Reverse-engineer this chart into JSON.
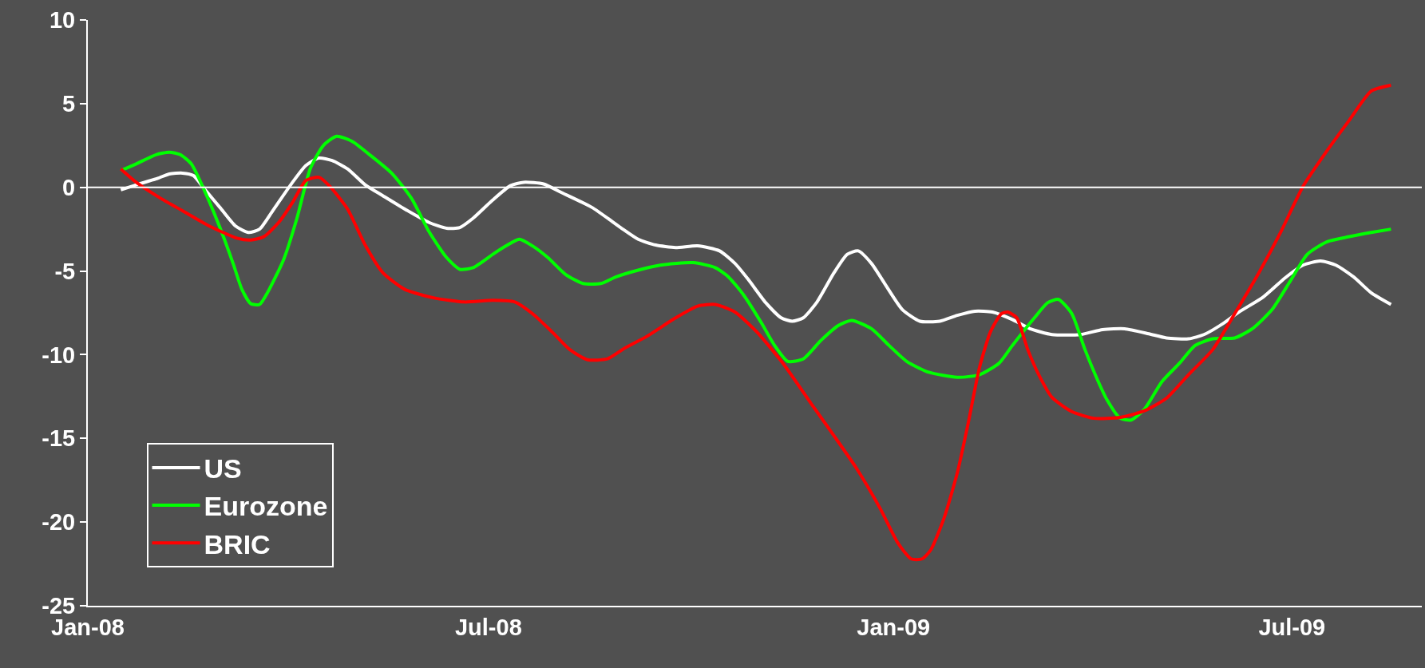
{
  "chart_data": {
    "type": "line",
    "xlim": [
      "2008-01-01",
      "2009-08-29"
    ],
    "xticks": [
      {
        "value": "2008-01-01",
        "label": "Jan-08"
      },
      {
        "value": "2008-07-01",
        "label": "Jul-08"
      },
      {
        "value": "2009-01-01",
        "label": "Jan-09"
      },
      {
        "value": "2009-07-01",
        "label": "Jul-09"
      }
    ],
    "ylim": [
      -25,
      10
    ],
    "yticks": [
      -25,
      -20,
      -15,
      -10,
      -5,
      0,
      5,
      10
    ],
    "grid": false,
    "legend": "bottom left",
    "marker": "none",
    "line_style": "solid",
    "ref_lines": [
      {
        "axis": "y",
        "value": 0,
        "color": "#ffffff"
      }
    ],
    "series": [
      {
        "name": "US",
        "color": "#ffffff",
        "x": [
          "2008-01-16",
          "2008-01-23",
          "2008-02-01",
          "2008-02-07",
          "2008-02-13",
          "2008-02-18",
          "2008-02-23",
          "2008-03-01",
          "2008-03-08",
          "2008-03-14",
          "2008-03-19",
          "2008-03-25",
          "2008-04-03",
          "2008-04-09",
          "2008-04-15",
          "2008-04-21",
          "2008-04-28",
          "2008-05-06",
          "2008-05-14",
          "2008-05-24",
          "2008-06-04",
          "2008-06-12",
          "2008-06-18",
          "2008-06-24",
          "2008-07-03",
          "2008-07-11",
          "2008-07-17",
          "2008-07-26",
          "2008-08-03",
          "2008-08-17",
          "2008-08-30",
          "2008-09-07",
          "2008-09-15",
          "2008-09-24",
          "2008-10-04",
          "2008-10-14",
          "2008-10-21",
          "2008-10-27",
          "2008-11-04",
          "2008-11-11",
          "2008-11-16",
          "2008-11-21",
          "2008-11-27",
          "2008-12-05",
          "2008-12-11",
          "2008-12-16",
          "2008-12-22",
          "2008-12-28",
          "2009-01-05",
          "2009-01-13",
          "2009-01-22",
          "2009-01-30",
          "2009-02-07",
          "2009-02-15",
          "2009-02-24",
          "2009-03-04",
          "2009-03-14",
          "2009-03-27",
          "2009-04-06",
          "2009-04-16",
          "2009-04-27",
          "2009-05-05",
          "2009-05-15",
          "2009-05-22",
          "2009-05-30",
          "2009-06-07",
          "2009-06-18",
          "2009-06-28",
          "2009-07-06",
          "2009-07-14",
          "2009-07-21",
          "2009-07-29",
          "2009-08-06",
          "2009-08-15"
        ],
        "values": [
          -0.15,
          0.15,
          0.5,
          0.8,
          0.85,
          0.7,
          -0.1,
          -1.2,
          -2.3,
          -2.7,
          -2.5,
          -1.4,
          0.3,
          1.3,
          1.75,
          1.6,
          1.1,
          0.15,
          -0.5,
          -1.3,
          -2.1,
          -2.45,
          -2.4,
          -1.85,
          -0.75,
          0.1,
          0.3,
          0.2,
          -0.3,
          -1.2,
          -2.4,
          -3.1,
          -3.45,
          -3.6,
          -3.5,
          -3.8,
          -4.55,
          -5.5,
          -6.9,
          -7.8,
          -8.0,
          -7.8,
          -6.9,
          -5.1,
          -4.0,
          -3.8,
          -4.55,
          -5.75,
          -7.3,
          -8.0,
          -8.0,
          -7.65,
          -7.4,
          -7.45,
          -7.9,
          -8.45,
          -8.8,
          -8.8,
          -8.5,
          -8.45,
          -8.75,
          -9.0,
          -9.05,
          -8.8,
          -8.2,
          -7.45,
          -6.55,
          -5.4,
          -4.65,
          -4.4,
          -4.65,
          -5.35,
          -6.3,
          -7.0
        ]
      },
      {
        "name": "Eurozone",
        "color": "#00ff00",
        "x": [
          "2008-01-16",
          "2008-01-23",
          "2008-02-01",
          "2008-02-07",
          "2008-02-12",
          "2008-02-17",
          "2008-02-23",
          "2008-03-01",
          "2008-03-07",
          "2008-03-11",
          "2008-03-15",
          "2008-03-19",
          "2008-03-23",
          "2008-03-30",
          "2008-04-05",
          "2008-04-11",
          "2008-04-17",
          "2008-04-23",
          "2008-04-30",
          "2008-05-08",
          "2008-05-18",
          "2008-05-27",
          "2008-06-04",
          "2008-06-12",
          "2008-06-18",
          "2008-06-24",
          "2008-07-03",
          "2008-07-09",
          "2008-07-15",
          "2008-07-21",
          "2008-07-28",
          "2008-08-05",
          "2008-08-13",
          "2008-08-21",
          "2008-08-28",
          "2008-09-07",
          "2008-09-17",
          "2008-10-02",
          "2008-10-12",
          "2008-10-18",
          "2008-10-25",
          "2008-11-02",
          "2008-11-08",
          "2008-11-14",
          "2008-11-21",
          "2008-11-29",
          "2008-12-07",
          "2008-12-13",
          "2008-12-22",
          "2008-12-30",
          "2009-01-07",
          "2009-01-17",
          "2009-01-30",
          "2009-02-09",
          "2009-02-18",
          "2009-02-24",
          "2009-03-06",
          "2009-03-12",
          "2009-03-17",
          "2009-03-23",
          "2009-03-29",
          "2009-04-04",
          "2009-04-08",
          "2009-04-14",
          "2009-04-19",
          "2009-04-25",
          "2009-05-03",
          "2009-05-11",
          "2009-05-18",
          "2009-05-26",
          "2009-06-05",
          "2009-06-13",
          "2009-06-22",
          "2009-06-30",
          "2009-07-08",
          "2009-07-17",
          "2009-07-27",
          "2009-08-06",
          "2009-08-15"
        ],
        "values": [
          1.0,
          1.4,
          1.95,
          2.1,
          1.95,
          1.4,
          -0.2,
          -2.4,
          -4.55,
          -6.1,
          -6.95,
          -7.0,
          -6.2,
          -4.3,
          -1.85,
          1.1,
          2.5,
          3.05,
          2.75,
          1.95,
          0.85,
          -0.65,
          -2.65,
          -4.2,
          -4.9,
          -4.8,
          -4.0,
          -3.5,
          -3.1,
          -3.5,
          -4.2,
          -5.2,
          -5.75,
          -5.75,
          -5.35,
          -4.95,
          -4.65,
          -4.5,
          -4.8,
          -5.35,
          -6.45,
          -8.1,
          -9.45,
          -10.4,
          -10.25,
          -9.15,
          -8.25,
          -7.95,
          -8.45,
          -9.45,
          -10.4,
          -11.05,
          -11.35,
          -11.2,
          -10.5,
          -9.45,
          -7.8,
          -6.9,
          -6.7,
          -7.55,
          -9.7,
          -11.6,
          -12.7,
          -13.8,
          -13.9,
          -13.25,
          -11.6,
          -10.5,
          -9.45,
          -9.05,
          -9.0,
          -8.45,
          -7.3,
          -5.65,
          -4.0,
          -3.25,
          -2.95,
          -2.7,
          -2.5
        ]
      },
      {
        "name": "BRIC",
        "color": "#ff0000",
        "x": [
          "2008-01-16",
          "2008-01-23",
          "2008-02-03",
          "2008-02-13",
          "2008-02-25",
          "2008-03-09",
          "2008-03-15",
          "2008-03-21",
          "2008-03-28",
          "2008-04-03",
          "2008-04-09",
          "2008-04-15",
          "2008-04-20",
          "2008-04-28",
          "2008-05-06",
          "2008-05-14",
          "2008-05-24",
          "2008-06-06",
          "2008-06-20",
          "2008-07-03",
          "2008-07-13",
          "2008-07-21",
          "2008-07-30",
          "2008-08-07",
          "2008-08-15",
          "2008-08-24",
          "2008-09-01",
          "2008-09-11",
          "2008-09-24",
          "2008-10-04",
          "2008-10-12",
          "2008-10-21",
          "2008-10-31",
          "2008-11-12",
          "2008-11-25",
          "2008-12-05",
          "2008-12-15",
          "2008-12-26",
          "2009-01-03",
          "2009-01-09",
          "2009-01-14",
          "2009-01-18",
          "2009-01-24",
          "2009-01-30",
          "2009-02-04",
          "2009-02-09",
          "2009-02-14",
          "2009-02-19",
          "2009-02-22",
          "2009-02-26",
          "2009-03-03",
          "2009-03-08",
          "2009-03-14",
          "2009-03-23",
          "2009-04-02",
          "2009-04-14",
          "2009-04-25",
          "2009-05-05",
          "2009-05-15",
          "2009-05-26",
          "2009-06-05",
          "2009-06-16",
          "2009-06-26",
          "2009-07-06",
          "2009-07-17",
          "2009-07-27",
          "2009-08-06",
          "2009-08-15"
        ],
        "values": [
          1.1,
          0.3,
          -0.65,
          -1.4,
          -2.3,
          -3.05,
          -3.15,
          -2.95,
          -2.05,
          -0.9,
          0.4,
          0.6,
          0.05,
          -1.3,
          -3.45,
          -5.1,
          -6.1,
          -6.6,
          -6.85,
          -6.75,
          -6.85,
          -7.55,
          -8.65,
          -9.7,
          -10.3,
          -10.25,
          -9.6,
          -8.9,
          -7.8,
          -7.1,
          -7.0,
          -7.45,
          -8.65,
          -10.55,
          -13.0,
          -14.85,
          -16.75,
          -19.2,
          -21.25,
          -22.2,
          -22.2,
          -21.65,
          -19.75,
          -17.05,
          -14.05,
          -10.8,
          -8.65,
          -7.55,
          -7.45,
          -7.8,
          -9.7,
          -11.2,
          -12.55,
          -13.4,
          -13.8,
          -13.75,
          -13.35,
          -12.6,
          -11.2,
          -9.7,
          -7.55,
          -5.1,
          -2.65,
          0.05,
          2.2,
          4.0,
          5.75,
          6.1
        ]
      }
    ]
  }
}
